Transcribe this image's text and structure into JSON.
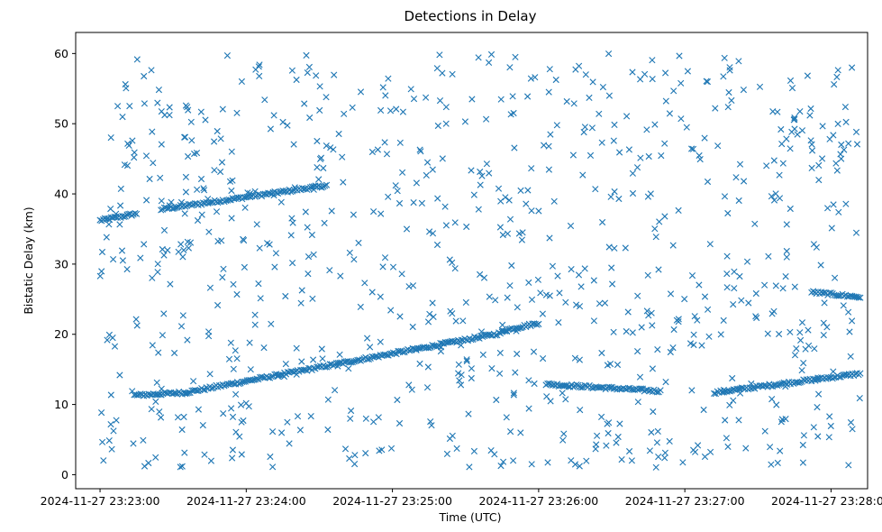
{
  "chart_data": {
    "type": "scatter",
    "title": "Detections in Delay",
    "xlabel": "Time (UTC)",
    "ylabel": "Bistatic Delay (km)",
    "x_ticks": [
      "2024-11-27 23:23:00",
      "2024-11-27 23:24:00",
      "2024-11-27 23:25:00",
      "2024-11-27 23:26:00",
      "2024-11-27 23:27:00",
      "2024-11-27 23:28:00"
    ],
    "y_ticks": [
      "0",
      "10",
      "20",
      "30",
      "40",
      "50",
      "60"
    ],
    "xlim": [
      "2024-11-27 23:22:50",
      "2024-11-27 23:28:15"
    ],
    "ylim": [
      -2,
      63
    ],
    "grid": false,
    "marker": "x",
    "color": "#1f77b4",
    "tracks": [
      {
        "start": "2024-11-27 23:23:00",
        "end": "2024-11-27 23:23:15",
        "y_start": 36.2,
        "y_end": 37.2
      },
      {
        "start": "2024-11-27 23:23:25",
        "end": "2024-11-27 23:24:33",
        "y_start": 37.8,
        "y_end": 41.2
      },
      {
        "start": "2024-11-27 23:23:14",
        "end": "2024-11-27 23:23:35",
        "y_start": 11.3,
        "y_end": 11.7
      },
      {
        "start": "2024-11-27 23:23:35",
        "end": "2024-11-27 23:25:45",
        "y_start": 11.7,
        "y_end": 20.2
      },
      {
        "start": "2024-11-27 23:25:45",
        "end": "2024-11-27 23:26:00",
        "y_start": 20.5,
        "y_end": 21.6
      },
      {
        "start": "2024-11-27 23:26:03",
        "end": "2024-11-27 23:26:50",
        "y_start": 12.9,
        "y_end": 11.9
      },
      {
        "start": "2024-11-27 23:27:12",
        "end": "2024-11-27 23:28:12",
        "y_start": 11.7,
        "y_end": 14.4
      },
      {
        "start": "2024-11-27 23:27:52",
        "end": "2024-11-27 23:28:12",
        "y_start": 26.0,
        "y_end": 25.3
      }
    ],
    "clutter": {
      "count": 850,
      "x_range": [
        "2024-11-27 23:23:00",
        "2024-11-27 23:28:12"
      ],
      "y_range": [
        1,
        60
      ]
    }
  }
}
